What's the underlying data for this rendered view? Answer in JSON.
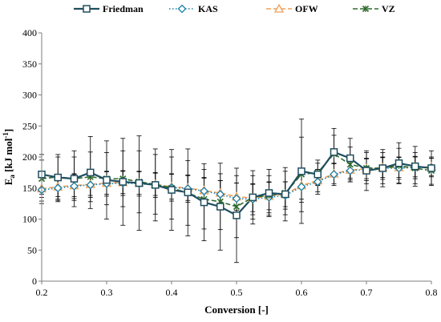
{
  "chart_data": {
    "type": "line",
    "xlabel": "Conversion [-]",
    "ylabel_main": "E",
    "ylabel_sub": "a",
    "ylabel_rest": " [kJ mol",
    "ylabel_sup": "-1",
    "ylabel_end": "]",
    "xlim": [
      0.2,
      0.8
    ],
    "ylim": [
      0,
      400
    ],
    "xticks": [
      0.2,
      0.3,
      0.4,
      0.5,
      0.6,
      0.7,
      0.8
    ],
    "xtick_labels": [
      "0.2",
      "0.3",
      "0.4",
      "0.5",
      "0.6",
      "0.7",
      "0.8"
    ],
    "yticks": [
      0,
      50,
      100,
      150,
      200,
      250,
      300,
      350,
      400
    ],
    "ytick_labels": [
      "0",
      "50",
      "100",
      "150",
      "200",
      "250",
      "300",
      "350",
      "400"
    ],
    "grid": false,
    "legend_position": "top",
    "x": [
      0.2,
      0.225,
      0.25,
      0.275,
      0.3,
      0.325,
      0.35,
      0.375,
      0.4,
      0.425,
      0.45,
      0.475,
      0.5,
      0.525,
      0.55,
      0.575,
      0.6,
      0.625,
      0.65,
      0.675,
      0.7,
      0.725,
      0.75,
      0.775,
      0.8
    ],
    "series": [
      {
        "name": "Friedman",
        "color": "#1f4e5f",
        "marker": "square",
        "dash": "solid",
        "values": [
          172,
          167,
          165,
          175,
          163,
          160,
          158,
          155,
          147,
          143,
          127,
          120,
          106,
          135,
          142,
          140,
          177,
          172,
          208,
          198,
          178,
          182,
          190,
          185,
          182
        ],
        "error": [
          32,
          37,
          45,
          58,
          63,
          70,
          76,
          58,
          65,
          70,
          62,
          70,
          76,
          43,
          38,
          43,
          84,
          18,
          38,
          32,
          32,
          30,
          33,
          32,
          28
        ]
      },
      {
        "name": "KAS",
        "color": "#1b7fa8",
        "marker": "diamond",
        "dash": "dotted",
        "values": [
          147,
          150,
          153,
          155,
          157,
          158,
          157,
          155,
          151,
          149,
          145,
          140,
          133,
          132,
          135,
          138,
          152,
          160,
          172,
          178,
          180,
          182,
          182,
          183,
          183
        ],
        "error": [
          22,
          22,
          20,
          20,
          20,
          20,
          20,
          20,
          22,
          22,
          22,
          22,
          25,
          25,
          25,
          22,
          25,
          20,
          18,
          18,
          18,
          18,
          18,
          18,
          15
        ]
      },
      {
        "name": "OFW",
        "color": "#f0a058",
        "marker": "triangle",
        "dash": "dashed",
        "values": [
          149,
          152,
          154,
          156,
          158,
          159,
          158,
          156,
          152,
          150,
          146,
          142,
          136,
          134,
          137,
          140,
          154,
          162,
          173,
          179,
          181,
          183,
          183,
          184,
          184
        ],
        "error": [
          20,
          20,
          18,
          18,
          18,
          18,
          18,
          18,
          20,
          20,
          20,
          20,
          22,
          22,
          22,
          20,
          22,
          18,
          16,
          16,
          16,
          16,
          16,
          16,
          14
        ]
      },
      {
        "name": "VZ",
        "color": "#2e6b2e",
        "marker": "x",
        "dash": "dashed",
        "values": [
          165,
          168,
          165,
          168,
          165,
          165,
          160,
          156,
          150,
          142,
          132,
          128,
          120,
          135,
          138,
          142,
          172,
          175,
          205,
          188,
          182,
          182,
          186,
          182,
          178
        ],
        "error": [
          30,
          32,
          35,
          40,
          42,
          45,
          50,
          48,
          50,
          52,
          48,
          45,
          50,
          35,
          32,
          35,
          60,
          20,
          30,
          28,
          25,
          25,
          28,
          25,
          22
        ]
      }
    ]
  }
}
